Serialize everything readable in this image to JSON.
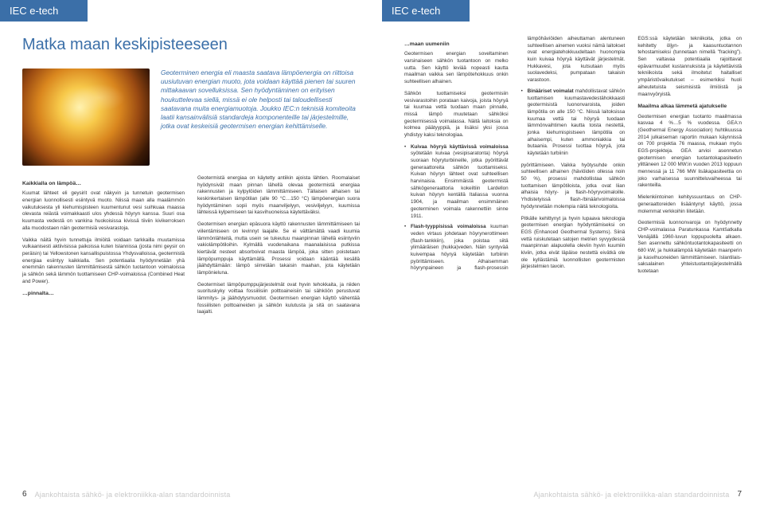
{
  "header_label": "IEC e-tech",
  "main_title": "Matka maan keskipisteeseen",
  "intro": "Geoterminen energia eli maasta saatava lämpöenergia on riittoisa uusiutuvan energian muoto, jota voidaan käyttää pienen tai suuren mittakaavan sovelluksissa. Sen hyödyntäminen on erityisen houkuttelevaa siellä, missä ei ole helposti tai taloudellisesti saatavana muita energiamuotoja. Joukko IEC:n teknisiä komiteoita laatii kansainvälisiä standardeja komponenteille tai järjestelmille, jotka ovat keskeisiä geotermisen energian kehittämiselle.",
  "left": {
    "h1": "Kaikkialla on lämpöä…",
    "p1": "Kuumat lähteet eli geysirit ovat näkyvin ja tunnetuin geotermisen energian luonnollisesti esiintyvä muoto. Niissä maan alla maalämmön vaikutuksesta yli kiehumispisteen kuumentunut vesi suihkuaa maassa olevasta reiästä voimakkaasti ulos yhdessä höyryn kanssa. Suuri osa kuumasta vedestä on vankina huokoisissa kivissä tiiviin kivikerroksen alla muodostaen näin geotermisiä vesivarastoja.",
    "p2": "Vaikka näitä hyvin tunnettuja ilmiöitä voidaan tarkkailla muutamissa vulkaanisesti aktiivisissa paikoissa kuten Islannissa (josta nimi geysir on peräisin) tai Yellowstonen kansallispuistossa Yhdysvalloissa, geotermistä energiaa esiintyy kaikkialla. Sen potentiaalia hyödynnetään yhä enemmän rakennusten lämmittämisestä sähkön tuotantoon voimaloissa ja sähkön sekä lämmön tuottamiseen CHP-voimaloissa (Combined Heat and Power).",
    "h2": "…pinnalta…",
    "p3": "Geotermistä energiaa on käytetty antiikin ajoista lähtien. Roomalaiset hyödynsivät maan pinnan lähellä olevaa geotermistä energiaa rakennusten ja kylpylöiden lämmittämiseen. Tällaisen alhaisen tai keskinkertaisen lämpötilan (alle 90 °C…150 °C) lämpöenergian suora hyödyntäminen sopii myös maanviljelyyn, vesiviljelyyn, kuumissa lähteissä kylpemiseen tai kasvihuoneissa käytettäväksi.",
    "p4": "Geotermisen energian epäsuora käyttö rakennusten lämmittämiseen tai viilentämiseen on levinnyt laajalle. Se ei välttämättä vaadi kuumia lämmönlähteitä, mutta usein se tukeutuu maanpinnan lähellä esiintyviin vakiolämpötiloihin. Kylmällä vuodenaikana maanalaisissa putkissa kiertävät nesteet absorboivat maasta lämpöä, joka sitten poistetaan lämpöpumppuja käyttämällä. Prosessi voidaan kääntää kesällä jäähdyttämään: lämpö siirretään takaisin maahan, jota käytetään lämpönieluna.",
    "p5": "Geotermiset lämpöpumppujärjestelmät ovat hyvin tehokkaita, ja niiden suorituskyky voittaa fossiilisiin polttoaineisiin tai sähköön perustuvat lämmitys- ja jäähdytysmuodot. Geotermisen energian käyttö vähentää fossiilisten polttoaineiden ja sähkön kulutusta ja sitä on saatavana laajalti."
  },
  "right": {
    "h1": "…maan uumeniin",
    "p1": "Geotermisen energian soveltaminen varsinaiseen sähkön tuotantoon on melko uutta. Sen käyttö leviää nopeasti kautta maailman vaikka sen lämpötehokkuus onkin suhteellisen alhainen.",
    "p2": "Sähkön tuottamiseksi geotermisiin vesivarastoihin porataan kaivoja, joista höyryä tai kuumaa vettä tuodaan maan pinnalle, missä lämpö muutetaan sähköksi geotermisessä voimalassa. Näitä laitoksia on kolmea päätyyppiä, ja lisäksi yksi jossa yhdistyy kaksi teknologiaa.",
    "li1_t": "Kuivaa höyryä käyttävissä voimaloissa",
    "li1": "syötetään kuivaa (vesipisaratonta) höyryä suoraan höyryturbiineille, jotka pyörittävät generaattoreita sähkön tuottamiseksi. Kuivan höyryn lähteet ovat suhteellisen harvinaisia. Ensimmäistä geotermistä sähkögeneraattoria kokeiltiin Lardellon kuivan höyryn kentällä Italiassa vuonna 1904, ja maailman ensimmäinen geoterminen voimala rakennettiin sinne 1911.",
    "li2_t": "Flash-tyyppisissä voimaloissa",
    "li2": "kuuman veden virtaus johdetaan höyrynerottimeen (flash-tankkiin), joka poistaa siitä ylimääräisen (hukka)veden. Näin syntyvää kuivempaa höyryä käytetään turbiinin pyörittämiseen. Alhaisemman höyrynpaineen ja flash-prosessin lämpöhäviöiden aiheuttaman alentuneen suhteellisen ainemen vuoksi nämä laitokset ovat energiatehokkuudeltaan huonompia kuin kuivaa höyryä käyttävät järjestelmät. Hukkavesi, jota kutsutaan myös suolavedeksi, pumpataan takaisin varastoon.",
    "li3_t": "Binääriset voimalat",
    "li3": "mahdollistavat sähkön tuottamisen kuumastavedestähokkaasti geotermisistä luononvaroista, joiden lämpötila on alle 150 °C. Niissä laitoksissa kuumaa vettä tai höyryä tuodaan lämmönvaihtimen kautta toista nestettä, jonka kiehumispistseen lämpötila on alhaisempi, kuten ammoniakkia tai butaania. Prosessi tuottaa höyryä, jota käytetään turbiinin",
    "p3": "pyörittämiseen. Vaikka hyötysuhde onkin suhteellisen alhainen (häviöiden ollessa noin 50 %), prosessi mahdollistaa sähkön tuottamisen lämpötiloista, jotka ovat liian alhaisia höyry- ja flash-höyryvoimaloille. Yhdistetyissä flash-/binäärivoimaloissa hyödynnetään molempia näitä teknologioita.",
    "p4": "Pitkälle kehittynyt ja hyvin lupaava teknologia geotermisen energian hyödyntämiseksi on EGS (Enhanced Geothermal Systems). Siinä vettä ruiskutetaan satojen metrien syvyydessä maanpinnan alapuolella oleviin hyvin kuumiin kiviin, jotka eivät läpäise nestettä eivätkä ole ole kyllästämiä luonnollisten geotermisten järjestelmien tavoin.",
    "p5": "EGS:ssä käytetään tekniikoita, jotka on kehitetty öljyn- ja kaasuntuotannon tehostamiseksi (tunnetaan nimellä \"fracking\"). Sen valtavaa potentiaalia rajoittavat epävarmuudet kustannuksista ja käytettävistä tekniikoista sekä ilmoitetut haitalliset ympäristövaikutukset – esimerkiksi huoli aiheutetuista seismisistä ilmiöistä ja maanvyöryistä.",
    "h2": "Maailma alkaa lämmetä ajatukselle",
    "p6": "Geotermisen energian tuotanto maailmassa kasvaa 4 %…5 % vuodessa. GEA:n (Geothermal Energy Association) huhtikuussa 2014 julkaiseman raportin mukaan käynnissä on 700 projektia 76 maassa, mukaan myös EGS-projekteja. GEA arvioi asennetun geotermisen energian tuotantokapasiteetin ylittäneen 12 000 MW:in vuoden 2013 loppuun mennessä ja 11 766 MW lisäkapasiteettia on joko varhaisessa suunnitteluvaiheessa tai rakenteilla.",
    "p7": "Mielenkiintoinen kehityssuuntaus on CHP-generaattoreiden lisääntynyt käyttö, jossa molemmat verkkoihin liitetään.",
    "p8": "Geotermisiä luonnonvaroja on hyödynnetty CHP-voimalassa Paratunkassa Kamtšatkalla Venäjällä 1960-luvun loppupuolelta alkaen. Sen asennettu sähköntuotantokapasiteetti on 680 kW, ja hukkalämpöä käytetään maanperin ja kasvihuoneiden lämmittämiseen. Islantilais-saksalainen yhteistuotantojärjestelmällä tuotetaan"
  },
  "footer": {
    "text": "Ajankohtaista sähkö- ja elektroniikka-alan standardoinnista",
    "left_page": "6",
    "right_page": "7"
  },
  "colors": {
    "brand_blue": "#3b6fa8",
    "footer_grey": "#c8c8c8",
    "body_text": "#333333"
  }
}
